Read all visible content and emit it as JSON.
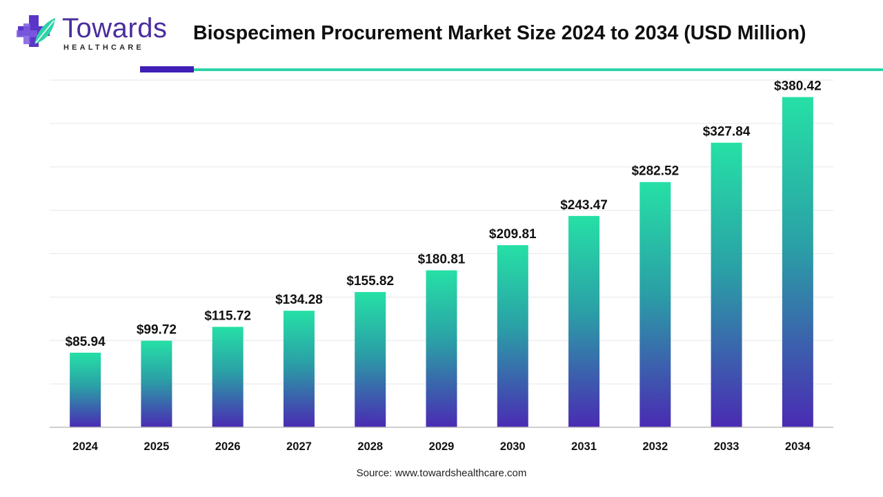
{
  "brand": {
    "name": "Towards",
    "tagline": "HEALTHCARE",
    "colors": {
      "primary": "#4a2e9e",
      "accent": "#2ed3a8",
      "rule": "#3f1fb5"
    }
  },
  "source": "Source: www.towardshealthcare.com",
  "chart_data": {
    "type": "bar",
    "title": "Biospecimen Procurement Market Size 2024 to 2034 (USD Million)",
    "xlabel": "",
    "ylabel": "",
    "categories": [
      "2024",
      "2025",
      "2026",
      "2027",
      "2028",
      "2029",
      "2030",
      "2031",
      "2032",
      "2033",
      "2034"
    ],
    "values": [
      85.94,
      99.72,
      115.72,
      134.28,
      155.82,
      180.81,
      209.81,
      243.47,
      282.52,
      327.84,
      380.42
    ],
    "labels": [
      "$85.94",
      "$99.72",
      "$115.72",
      "$134.28",
      "$155.82",
      "$180.81",
      "$209.81",
      "$243.47",
      "$282.52",
      "$327.84",
      "$380.42"
    ],
    "ylim": [
      0,
      400
    ],
    "grid": true,
    "y_tick_labels_shown": false,
    "colors": {
      "bar_top": "#26e0a6",
      "bar_mid": "#2aa0a6",
      "bar_bottom": "#4a2bb3",
      "grid": "#e6e6e6",
      "axis": "#bdbdbd"
    }
  }
}
